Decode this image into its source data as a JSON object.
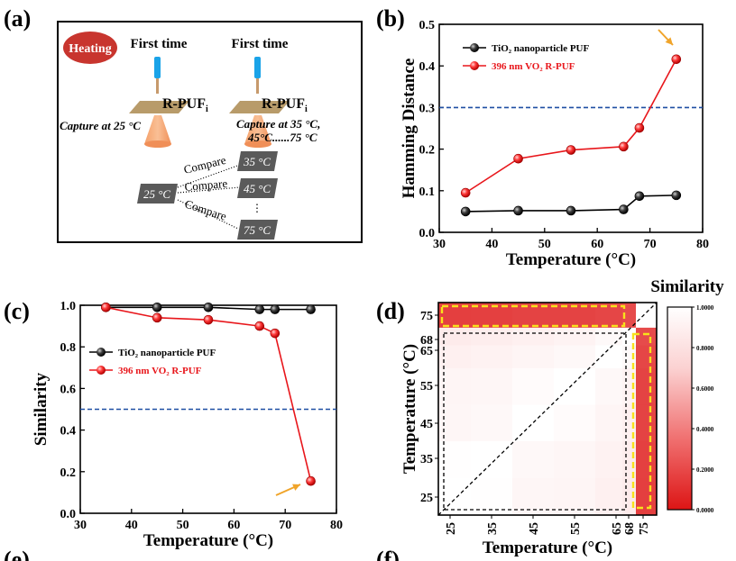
{
  "panels": {
    "a": {
      "label": "(a)",
      "heating": "Heating",
      "first_time": "First time",
      "rpuf": "R-PUF",
      "rpuf_sub": "i",
      "capture_left": "Capture at 25 °C",
      "capture_right_1": "Capture at 35 °C,",
      "capture_right_2": "45°C......75 °C",
      "base_temp": "25 °C",
      "compare": "Compare",
      "targets": [
        "35 °C",
        "45 °C",
        "75 °C"
      ],
      "ellipsis": "⋮"
    },
    "b": {
      "label": "(b)"
    },
    "c": {
      "label": "(c)"
    },
    "d": {
      "label": "(d)",
      "title": "Similarity"
    },
    "e": {
      "label": "(e)"
    },
    "f": {
      "label": "(f)"
    }
  },
  "chart_data": [
    {
      "id": "b",
      "type": "line",
      "xlabel": "Temperature (°C)",
      "ylabel": "Hamming Distance",
      "xlim": [
        30,
        80
      ],
      "ylim": [
        0.0,
        0.5
      ],
      "xticks": [
        30,
        40,
        50,
        60,
        70,
        80
      ],
      "yticks": [
        "0.0",
        "0.1",
        "0.2",
        "0.3",
        "0.4",
        "0.5"
      ],
      "threshold": 0.3,
      "legend_position": "top-left",
      "series": [
        {
          "name": "TiO₂ nanoparticle PUF",
          "color": "#000000",
          "x": [
            35,
            45,
            55,
            65,
            68,
            75
          ],
          "y": [
            0.05,
            0.052,
            0.052,
            0.055,
            0.087,
            0.089
          ]
        },
        {
          "name": "396 nm VO₂ R-PUF",
          "color": "#e8161b",
          "x": [
            35,
            45,
            55,
            65,
            68,
            75
          ],
          "y": [
            0.095,
            0.177,
            0.198,
            0.206,
            0.251,
            0.416
          ]
        }
      ]
    },
    {
      "id": "c",
      "type": "line",
      "xlabel": "Temperature (°C)",
      "ylabel": "Similarity",
      "xlim": [
        30,
        80
      ],
      "ylim": [
        0.0,
        1.0
      ],
      "xticks": [
        30,
        40,
        50,
        60,
        70,
        80
      ],
      "yticks": [
        "0.0",
        "0.2",
        "0.4",
        "0.6",
        "0.8",
        "1.0"
      ],
      "threshold": 0.5,
      "legend_position": "middle-left",
      "series": [
        {
          "name": "TiO₂ nanoparticle PUF",
          "color": "#000000",
          "x": [
            35,
            45,
            55,
            65,
            68,
            75
          ],
          "y": [
            0.99,
            0.99,
            0.99,
            0.98,
            0.98,
            0.98
          ]
        },
        {
          "name": "396 nm VO₂ R-PUF",
          "color": "#e8161b",
          "x": [
            35,
            45,
            55,
            65,
            68,
            75
          ],
          "y": [
            0.99,
            0.94,
            0.93,
            0.9,
            0.865,
            0.155
          ]
        }
      ]
    },
    {
      "id": "d",
      "type": "heatmap",
      "xlabel": "Temperature (°C)",
      "ylabel": "Temperature (°C)",
      "categories": [
        "25",
        "35",
        "45",
        "55",
        "65",
        "68",
        "75"
      ],
      "colorbar_ticks": [
        "1.0000",
        "0.8000",
        "0.6000",
        "0.4000",
        "0.2000",
        "0.0000"
      ],
      "colorbar_range": [
        0,
        1
      ],
      "values": [
        [
          1.0,
          0.99,
          0.94,
          0.93,
          0.9,
          0.865,
          0.155
        ],
        [
          0.99,
          1.0,
          0.95,
          0.94,
          0.91,
          0.88,
          0.16
        ],
        [
          0.94,
          0.95,
          1.0,
          0.97,
          0.93,
          0.9,
          0.17
        ],
        [
          0.93,
          0.94,
          0.97,
          1.0,
          0.95,
          0.92,
          0.17
        ],
        [
          0.9,
          0.91,
          0.93,
          0.95,
          1.0,
          0.96,
          0.18
        ],
        [
          0.865,
          0.88,
          0.9,
          0.92,
          0.96,
          1.0,
          0.2
        ],
        [
          0.155,
          0.16,
          0.17,
          0.17,
          0.18,
          0.2,
          1.0
        ]
      ]
    }
  ]
}
